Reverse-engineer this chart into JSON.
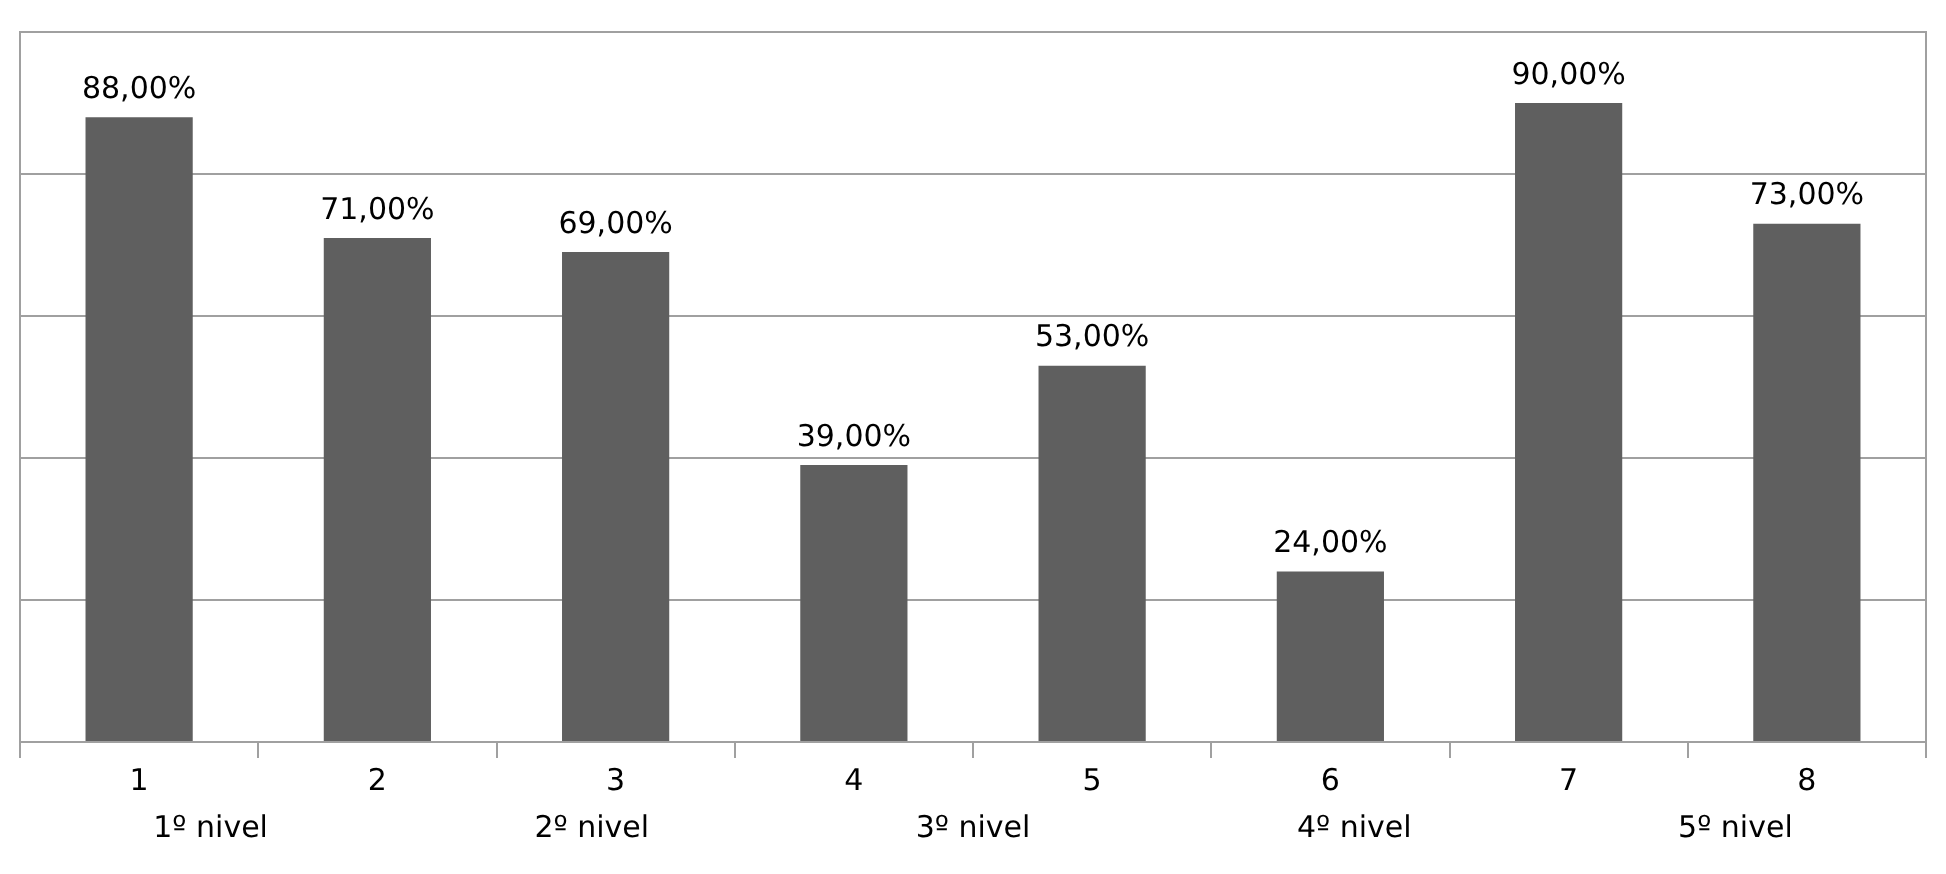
{
  "chart_data": {
    "type": "bar",
    "categories": [
      "1",
      "2",
      "3",
      "4",
      "5",
      "6",
      "7",
      "8"
    ],
    "values": [
      88,
      71,
      69,
      39,
      53,
      24,
      90,
      73
    ],
    "value_labels": [
      "88,00%",
      "71,00%",
      "69,00%",
      "39,00%",
      "53,00%",
      "24,00%",
      "90,00%",
      "73,00%"
    ],
    "color": "#5f5f5f",
    "ylim": [
      0,
      100
    ],
    "yticks": [
      {
        "value": 0,
        "label": null
      },
      {
        "value": 20,
        "label": null
      },
      {
        "value": 40,
        "label": null
      },
      {
        "value": 60,
        "label": null
      },
      {
        "value": 80,
        "label": null
      },
      {
        "value": 100,
        "label": null
      }
    ],
    "grid": "y",
    "tick_labels": "x",
    "annotations": [
      "1º nivel",
      "2º nivel",
      "3º nivel",
      "4º nivel",
      "5º nivel"
    ]
  }
}
